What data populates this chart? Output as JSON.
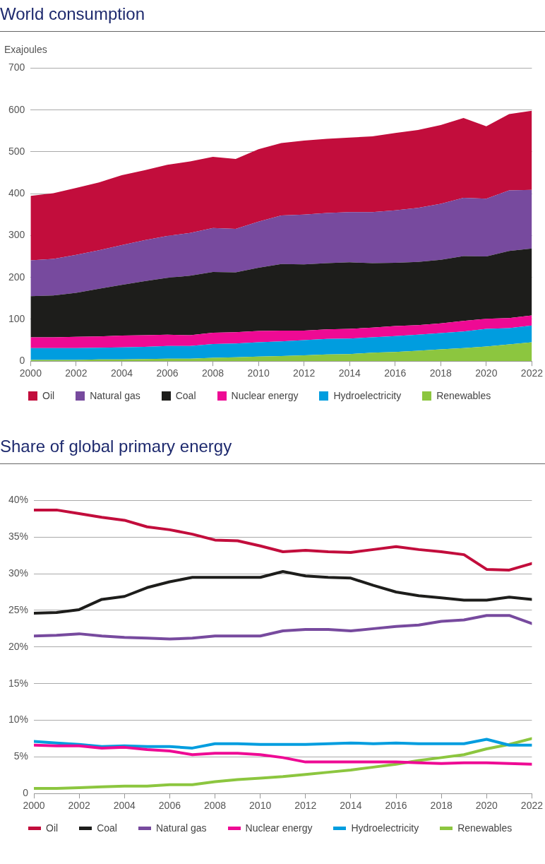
{
  "chart_data": [
    {
      "type": "area",
      "title": "World consumption",
      "ylabel": "Exajoules",
      "stacked": true,
      "grid": "y",
      "legend": "bottom",
      "x": [
        2000,
        2001,
        2002,
        2003,
        2004,
        2005,
        2006,
        2007,
        2008,
        2009,
        2010,
        2011,
        2012,
        2013,
        2014,
        2015,
        2016,
        2017,
        2018,
        2019,
        2020,
        2021,
        2022
      ],
      "xlim": [
        2000,
        2022
      ],
      "xticks": [
        2000,
        2002,
        2004,
        2006,
        2008,
        2010,
        2012,
        2014,
        2016,
        2018,
        2020,
        2022
      ],
      "ylim": [
        0,
        700
      ],
      "yticks": [
        0,
        100,
        200,
        300,
        400,
        500,
        600,
        700
      ],
      "series": [
        {
          "name": "Renewables",
          "color": "#8cc63f",
          "values": [
            3,
            3,
            3,
            4,
            4,
            5,
            6,
            6,
            8,
            9,
            11,
            12,
            14,
            16,
            17,
            20,
            22,
            25,
            28,
            31,
            35,
            40,
            45
          ]
        },
        {
          "name": "Hydroelectricity",
          "color": "#009ddf",
          "values": [
            28,
            28,
            28,
            28,
            29,
            29,
            30,
            30,
            33,
            33,
            34,
            35,
            36,
            37,
            37,
            37,
            38,
            38,
            39,
            40,
            42,
            39,
            40
          ]
        },
        {
          "name": "Nuclear energy",
          "color": "#ee0a94",
          "values": [
            26,
            26,
            27,
            27,
            28,
            28,
            27,
            26,
            27,
            27,
            27,
            26,
            23,
            23,
            23,
            23,
            24,
            23,
            23,
            25,
            24,
            24,
            24
          ]
        },
        {
          "name": "Coal",
          "color": "#1d1d1b",
          "values": [
            98,
            100,
            105,
            114,
            121,
            129,
            136,
            142,
            145,
            143,
            151,
            159,
            158,
            158,
            159,
            154,
            151,
            151,
            152,
            155,
            149,
            160,
            160
          ]
        },
        {
          "name": "Natural gas",
          "color": "#774a9e",
          "values": [
            86,
            87,
            91,
            92,
            95,
            98,
            100,
            102,
            105,
            104,
            110,
            116,
            119,
            120,
            120,
            122,
            125,
            129,
            134,
            139,
            138,
            145,
            140
          ]
        },
        {
          "name": "Oil",
          "color": "#c20d3c",
          "values": [
            154,
            157,
            160,
            162,
            167,
            167,
            170,
            171,
            170,
            167,
            173,
            173,
            177,
            177,
            178,
            181,
            185,
            186,
            188,
            191,
            173,
            182,
            189
          ]
        }
      ]
    },
    {
      "type": "line",
      "title": "Share of global primary energy",
      "grid": "y",
      "legend": "bottom",
      "marker": "none",
      "line_style": "solid",
      "x": [
        2000,
        2001,
        2002,
        2003,
        2004,
        2005,
        2006,
        2007,
        2008,
        2009,
        2010,
        2011,
        2012,
        2013,
        2014,
        2015,
        2016,
        2017,
        2018,
        2019,
        2020,
        2021,
        2022
      ],
      "xlim": [
        2000,
        2022
      ],
      "xticks": [
        2000,
        2002,
        2004,
        2006,
        2008,
        2010,
        2012,
        2014,
        2016,
        2018,
        2020,
        2022
      ],
      "ylim": [
        0,
        40
      ],
      "yticks": [
        0,
        {
          "value": 5,
          "label": "5%"
        },
        {
          "value": 10,
          "label": "10%"
        },
        {
          "value": 15,
          "label": "15%"
        },
        {
          "value": 20,
          "label": "20%"
        },
        {
          "value": 25,
          "label": "25%"
        },
        {
          "value": 30,
          "label": "30%"
        },
        {
          "value": 35,
          "label": "35%"
        },
        {
          "value": 40,
          "label": "40%"
        }
      ],
      "series": [
        {
          "name": "Oil",
          "color": "#c20d3c",
          "values": [
            38.7,
            38.7,
            38.2,
            37.7,
            37.3,
            36.4,
            36.0,
            35.4,
            34.6,
            34.5,
            33.8,
            33.0,
            33.2,
            33.0,
            32.9,
            33.3,
            33.7,
            33.3,
            33.0,
            32.6,
            30.6,
            30.5,
            31.4
          ]
        },
        {
          "name": "Coal",
          "color": "#1d1d1b",
          "values": [
            24.6,
            24.7,
            25.1,
            26.5,
            26.9,
            28.1,
            28.9,
            29.5,
            29.5,
            29.5,
            29.5,
            30.3,
            29.7,
            29.5,
            29.4,
            28.4,
            27.5,
            27.0,
            26.7,
            26.4,
            26.4,
            26.8,
            26.5
          ]
        },
        {
          "name": "Natural gas",
          "color": "#774a9e",
          "values": [
            21.5,
            21.6,
            21.8,
            21.5,
            21.3,
            21.2,
            21.1,
            21.2,
            21.5,
            21.5,
            21.5,
            22.2,
            22.4,
            22.4,
            22.2,
            22.5,
            22.8,
            23.0,
            23.5,
            23.7,
            24.3,
            24.3,
            23.2
          ]
        },
        {
          "name": "Nuclear energy",
          "color": "#ee0a94",
          "values": [
            6.6,
            6.5,
            6.5,
            6.2,
            6.3,
            6.0,
            5.8,
            5.3,
            5.5,
            5.5,
            5.3,
            4.9,
            4.3,
            4.3,
            4.3,
            4.3,
            4.3,
            4.2,
            4.1,
            4.2,
            4.2,
            4.1,
            4.0
          ]
        },
        {
          "name": "Hydroelectricity",
          "color": "#009ddf",
          "values": [
            7.1,
            6.9,
            6.7,
            6.4,
            6.5,
            6.4,
            6.4,
            6.2,
            6.8,
            6.8,
            6.7,
            6.7,
            6.7,
            6.8,
            6.9,
            6.8,
            6.9,
            6.8,
            6.8,
            6.8,
            7.4,
            6.6,
            6.6
          ]
        },
        {
          "name": "Renewables",
          "color": "#8cc63f",
          "values": [
            0.7,
            0.7,
            0.8,
            0.9,
            1.0,
            1.0,
            1.2,
            1.2,
            1.6,
            1.9,
            2.1,
            2.3,
            2.6,
            2.9,
            3.2,
            3.6,
            4.0,
            4.5,
            4.9,
            5.3,
            6.1,
            6.7,
            7.5
          ]
        }
      ]
    }
  ]
}
